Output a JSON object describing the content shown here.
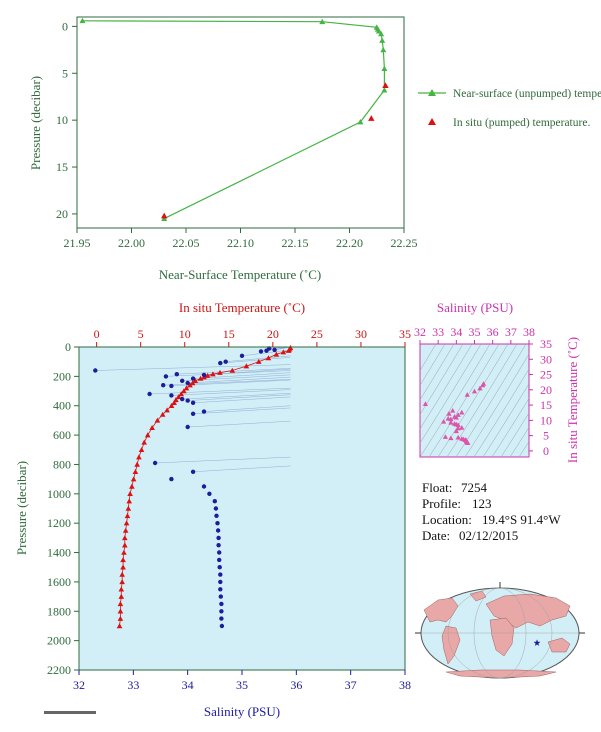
{
  "chart_data": [
    {
      "type": "line",
      "name": "near-surface-temperature-profile",
      "xlabel": "Near-Surface Temperature (˚C)",
      "ylabel": "Pressure (decibar)",
      "xlim": [
        21.95,
        22.25
      ],
      "ylim": [
        21.5,
        -1.0
      ],
      "x_ticks": [
        "21.95",
        "22.00",
        "22.05",
        "22.10",
        "22.15",
        "22.20",
        "22.25"
      ],
      "y_ticks": [
        "0",
        "5",
        "10",
        "15",
        "20"
      ],
      "legend_position": "right",
      "colors": {
        "unpumped": "#44b444",
        "pumped": "#dd1111",
        "axis_text": "#2f6b3c"
      },
      "series": [
        {
          "name": "Near-surface (unpumped) temperature.",
          "style": "line-triangle",
          "x": [
            22.03,
            22.21,
            22.232,
            22.232,
            22.231,
            22.23,
            22.229,
            22.227,
            22.226,
            22.225,
            22.175,
            21.955
          ],
          "y": [
            20.5,
            10.2,
            6.8,
            4.5,
            2.5,
            1.5,
            0.8,
            0.5,
            0.3,
            0.1,
            -0.5,
            -0.6
          ]
        },
        {
          "name": "In situ (pumped) temperature.",
          "style": "triangle",
          "x": [
            22.03,
            22.22,
            22.233
          ],
          "y": [
            20.2,
            9.8,
            6.3
          ]
        }
      ]
    },
    {
      "type": "line",
      "name": "temperature-salinity-profile",
      "x_top_label": "In situ Temperature (˚C)",
      "x_bottom_label": "Salinity (PSU)",
      "ylabel": "Pressure (decibar)",
      "temp_range": [
        -2,
        35
      ],
      "sal_range": [
        32,
        38
      ],
      "ylim": [
        2200,
        0
      ],
      "temp_ticks": [
        "0",
        "5",
        "10",
        "15",
        "20",
        "25",
        "30",
        "35"
      ],
      "sal_ticks": [
        "32",
        "33",
        "34",
        "35",
        "36",
        "37",
        "38"
      ],
      "y_ticks": [
        "0",
        "200",
        "400",
        "600",
        "800",
        "1000",
        "1200",
        "1400",
        "1600",
        "1800",
        "2000",
        "2200"
      ],
      "colors": {
        "temperature": "#dd1111",
        "salinity": "#1c1c9c",
        "background": "#d2eef6",
        "axis_text": "#2f6b3c"
      },
      "series": [
        {
          "name": "In situ Temperature",
          "pressure": [
            5,
            15,
            25,
            35,
            50,
            75,
            100,
            130,
            160,
            175,
            185,
            195,
            205,
            215,
            230,
            245,
            260,
            280,
            300,
            320,
            340,
            360,
            380,
            400,
            430,
            460,
            500,
            550,
            600,
            650,
            700,
            750,
            800,
            850,
            900,
            950,
            1000,
            1050,
            1100,
            1150,
            1200,
            1250,
            1300,
            1350,
            1400,
            1450,
            1500,
            1550,
            1600,
            1650,
            1700,
            1750,
            1800,
            1850,
            1900
          ],
          "temp": [
            22.0,
            21.9,
            21.8,
            21.2,
            20.4,
            19.5,
            18.4,
            17.0,
            15.4,
            14.0,
            13.2,
            12.6,
            12.2,
            11.8,
            11.2,
            10.9,
            10.6,
            10.2,
            9.9,
            9.6,
            9.3,
            9.0,
            8.8,
            8.5,
            8.0,
            7.5,
            6.9,
            6.3,
            5.8,
            5.4,
            5.1,
            4.8,
            4.6,
            4.4,
            4.2,
            4.0,
            3.8,
            3.7,
            3.6,
            3.5,
            3.4,
            3.3,
            3.2,
            3.2,
            3.1,
            3.0,
            3.0,
            2.9,
            2.9,
            2.8,
            2.8,
            2.7,
            2.7,
            2.7,
            2.6
          ]
        },
        {
          "name": "Salinity",
          "pressure": [
            10,
            20,
            25,
            30,
            60,
            100,
            110,
            160,
            185,
            190,
            200,
            215,
            230,
            245,
            260,
            265,
            320,
            330,
            355,
            365,
            380,
            440,
            455,
            545,
            790,
            850,
            900,
            950,
            1000,
            1050,
            1100,
            1150,
            1200,
            1250,
            1300,
            1350,
            1400,
            1450,
            1500,
            1550,
            1600,
            1650,
            1700,
            1750,
            1800,
            1850,
            1900
          ],
          "sal": [
            35.5,
            35.6,
            35.45,
            35.35,
            35.0,
            34.7,
            34.6,
            32.3,
            33.8,
            34.3,
            33.6,
            34.1,
            33.9,
            34.0,
            33.55,
            33.7,
            33.3,
            33.7,
            33.9,
            34.0,
            34.1,
            34.3,
            34.1,
            34.0,
            33.4,
            34.1,
            33.7,
            34.3,
            34.4,
            34.5,
            34.52,
            34.53,
            34.55,
            34.56,
            34.57,
            34.57,
            34.58,
            34.58,
            34.59,
            34.6,
            34.6,
            34.6,
            34.61,
            34.62,
            34.62,
            34.62,
            34.63
          ]
        }
      ]
    },
    {
      "type": "scatter",
      "name": "ts-diagram",
      "title": "Salinity (PSU)",
      "xlabel": "Salinity (PSU)",
      "ylabel": "In situ Temperature (˚C)",
      "xlim": [
        32,
        38
      ],
      "ylim": [
        -2,
        35
      ],
      "x_ticks": [
        "32",
        "33",
        "34",
        "35",
        "36",
        "37",
        "38"
      ],
      "y_ticks": [
        "0",
        "5",
        "10",
        "15",
        "20",
        "25",
        "30",
        "35"
      ],
      "colors": {
        "points": "#dd55aa",
        "axis_text": "#cc33aa"
      },
      "points": [
        [
          35.5,
          22.0
        ],
        [
          35.45,
          21.5
        ],
        [
          35.3,
          20.5
        ],
        [
          35.0,
          19.5
        ],
        [
          34.6,
          18.4
        ],
        [
          32.3,
          15.4
        ],
        [
          33.8,
          13.2
        ],
        [
          34.3,
          12.6
        ],
        [
          33.6,
          12.2
        ],
        [
          34.1,
          11.8
        ],
        [
          33.9,
          11.2
        ],
        [
          34.0,
          10.9
        ],
        [
          33.55,
          10.6
        ],
        [
          33.7,
          10.4
        ],
        [
          33.3,
          9.6
        ],
        [
          33.7,
          9.3
        ],
        [
          33.9,
          8.9
        ],
        [
          34.0,
          8.7
        ],
        [
          34.1,
          8.5
        ],
        [
          34.3,
          7.6
        ],
        [
          34.1,
          7.4
        ],
        [
          34.0,
          6.5
        ],
        [
          33.4,
          4.6
        ],
        [
          34.1,
          4.4
        ],
        [
          33.7,
          4.2
        ],
        [
          34.3,
          4.0
        ],
        [
          34.4,
          3.8
        ],
        [
          34.5,
          3.6
        ],
        [
          34.55,
          3.4
        ],
        [
          34.57,
          3.2
        ],
        [
          34.58,
          3.0
        ],
        [
          34.6,
          2.9
        ],
        [
          34.62,
          2.7
        ],
        [
          34.63,
          2.6
        ]
      ]
    }
  ],
  "info": {
    "float_label": "Float:",
    "float_value": "7254",
    "profile_label": "Profile:",
    "profile_value": "123",
    "location_label": "Location:",
    "location_value": "19.4°S  91.4°W",
    "date_label": "Date:",
    "date_value": "02/12/2015"
  },
  "map": {
    "marker_icon": "star-icon",
    "ocean_color": "#d2eef6",
    "land_color": "#e8a8a8",
    "marker_color": "#1c1c9c"
  }
}
